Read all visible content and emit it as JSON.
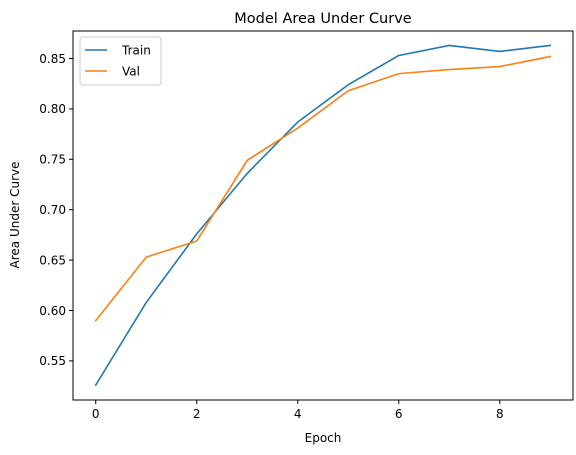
{
  "chart_data": {
    "type": "line",
    "title": "Model Area Under Curve",
    "xlabel": "Epoch",
    "ylabel": "Area Under Curve",
    "x": [
      0,
      1,
      2,
      3,
      4,
      5,
      6,
      7,
      8,
      9
    ],
    "xlim": [
      -0.45,
      9.45
    ],
    "ylim": [
      0.5112,
      0.8773
    ],
    "xticks": [
      0,
      2,
      4,
      6,
      8
    ],
    "yticks": [
      0.55,
      0.6,
      0.65,
      0.7,
      0.75,
      0.8,
      0.85
    ],
    "ytick_labels": [
      "0.55",
      "0.60",
      "0.65",
      "0.70",
      "0.75",
      "0.80",
      "0.85"
    ],
    "grid": false,
    "legend": "upper-left",
    "series": [
      {
        "name": "Train",
        "color": "#1f77b4",
        "values": [
          0.526,
          0.608,
          0.676,
          0.736,
          0.787,
          0.824,
          0.853,
          0.863,
          0.857,
          0.863
        ]
      },
      {
        "name": "Val",
        "color": "#ff7f0e",
        "values": [
          0.59,
          0.653,
          0.669,
          0.749,
          0.781,
          0.818,
          0.835,
          0.839,
          0.842,
          0.852
        ]
      }
    ]
  }
}
